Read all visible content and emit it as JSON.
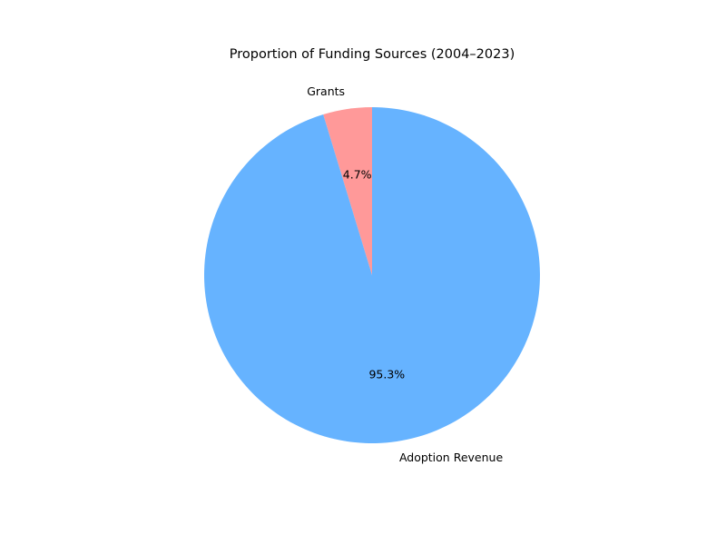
{
  "chart_data": {
    "type": "pie",
    "title": "Proportion of Funding Sources (2004–2023)",
    "slices": [
      {
        "label": "Grants",
        "percent": 4.7,
        "percent_label": "4.7%",
        "color": "#ff9999"
      },
      {
        "label": "Adoption Revenue",
        "percent": 95.3,
        "percent_label": "95.3%",
        "color": "#66b3ff"
      }
    ],
    "start_angle_deg": 90,
    "direction": "counterclockwise"
  }
}
